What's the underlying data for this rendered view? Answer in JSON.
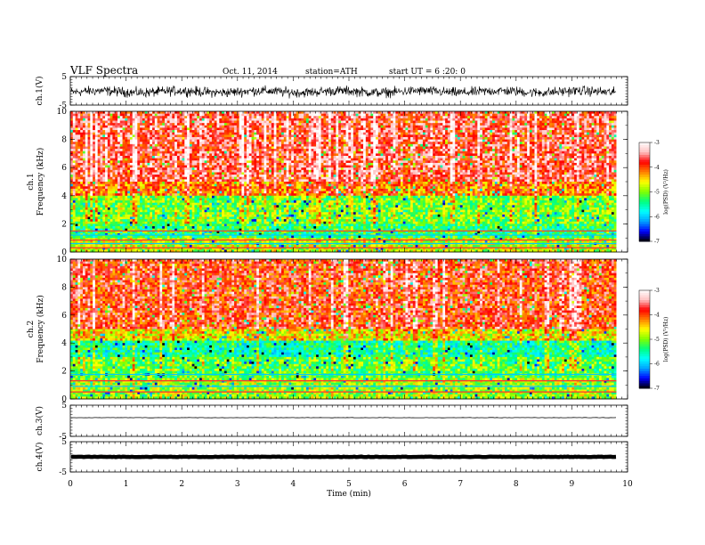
{
  "header": {
    "title": "VLF  Spectra",
    "date": "Oct. 11, 2014",
    "station": "station=ATH",
    "start": "start  UT =   6  :20: 0"
  },
  "chart_data": [
    {
      "type": "line",
      "ylabel": "ch.1(V)",
      "ylim": [
        -5,
        5
      ],
      "y_ticks": [
        "5",
        "-5"
      ],
      "series": [
        {
          "description": "noisy waveform around -0.3 V, peaks near ±1.5 V",
          "level": -0.3,
          "amplitude": 1.4
        }
      ]
    },
    {
      "type": "heatmap",
      "ylabel": "ch.1\nFrequency  (kHz)",
      "ylim": [
        0,
        10
      ],
      "y_ticks": [
        "0",
        "2",
        "4",
        "6",
        "8",
        "10"
      ],
      "colorbar": {
        "label": "log(PSD) (V²/Hz)",
        "range": [
          -7,
          -3
        ],
        "ticks": [
          "-7",
          "-6",
          "-5",
          "-4",
          "-3"
        ]
      },
      "description": "Wideband spectrogram: high power (red, ~-3.5) above ~4 kHz, moderate (green/cyan) 1-4 kHz, strong narrowband lines below 1 kHz, sferic vertical streaks throughout"
    },
    {
      "type": "heatmap",
      "ylabel": "ch.2\nFrequency  (kHz)",
      "ylim": [
        0,
        10
      ],
      "y_ticks": [
        "0",
        "2",
        "4",
        "6",
        "8",
        "10"
      ],
      "colorbar": {
        "label": "log(PSD) (V²/Hz)",
        "range": [
          -7,
          -3
        ],
        "ticks": [
          "-7",
          "-6",
          "-5",
          "-4",
          "-3"
        ]
      },
      "description": "Similar wideband spectrogram, cyan band around 3-4 kHz, horizontal lines below 2 kHz"
    },
    {
      "type": "line",
      "ylabel": "ch.3(V)",
      "ylim": [
        -5,
        5
      ],
      "y_ticks": [
        "5",
        "-5"
      ],
      "series": [
        {
          "description": "nearly flat trace slightly above zero",
          "level": 1.0,
          "amplitude": 0.1
        }
      ]
    },
    {
      "type": "line",
      "ylabel": "ch.4(V)",
      "ylim": [
        -5,
        5
      ],
      "y_ticks": [
        "5",
        "-5"
      ],
      "series": [
        {
          "description": "thick flat trace near zero",
          "level": 0.0,
          "amplitude": 0.15
        }
      ]
    }
  ],
  "x_axis": {
    "xlabel": "Time  (min)",
    "xlim": [
      0,
      10
    ],
    "ticks": [
      "0",
      "1",
      "2",
      "3",
      "4",
      "5",
      "6",
      "7",
      "8",
      "9",
      "10"
    ],
    "data_end_min": 9.8
  },
  "colors": {
    "scale": [
      "#000000",
      "#0000ff",
      "#00a0ff",
      "#00ffff",
      "#00ff80",
      "#80ff00",
      "#ffff00",
      "#ff8000",
      "#ff0000",
      "#ffc0c0",
      "#ffffff"
    ]
  }
}
